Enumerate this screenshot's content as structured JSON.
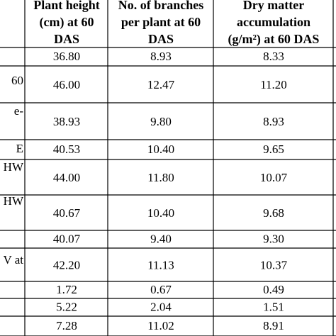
{
  "table": {
    "header": [
      [
        "Plant height",
        "(cm) at 60",
        "DAS"
      ],
      [
        "No. of branches",
        "per plant at 60",
        "DAS"
      ],
      [
        "Dry matter",
        "accumulation",
        "(g/m²) at 60 DAS"
      ]
    ],
    "rows": [
      {
        "cells": [
          "36.80",
          "8.93",
          "8.33"
        ]
      },
      {
        "stub": "60",
        "cells": [
          "46.00",
          "12.47",
          "11.20"
        ]
      },
      {
        "stub": "e-",
        "cells": [
          "38.93",
          "9.80",
          "8.93"
        ]
      },
      {
        "stub": "E",
        "cells": [
          "40.53",
          "10.40",
          "9.65"
        ]
      },
      {
        "stub": "HW",
        "cells": [
          "44.00",
          "11.80",
          "10.07"
        ]
      },
      {
        "stub": "HW",
        "cells": [
          "40.67",
          "10.40",
          "9.68"
        ]
      },
      {
        "cells": [
          "40.07",
          "9.40",
          "9.30"
        ]
      },
      {
        "stub": "V at",
        "cells": [
          "42.20",
          "11.13",
          "10.37"
        ]
      },
      {
        "cells": [
          "1.72",
          "0.67",
          "0.49"
        ]
      },
      {
        "cells": [
          "5.22",
          "2.04",
          "1.51"
        ]
      },
      {
        "cells": [
          "7.28",
          "11.02",
          "8.91"
        ]
      }
    ]
  }
}
